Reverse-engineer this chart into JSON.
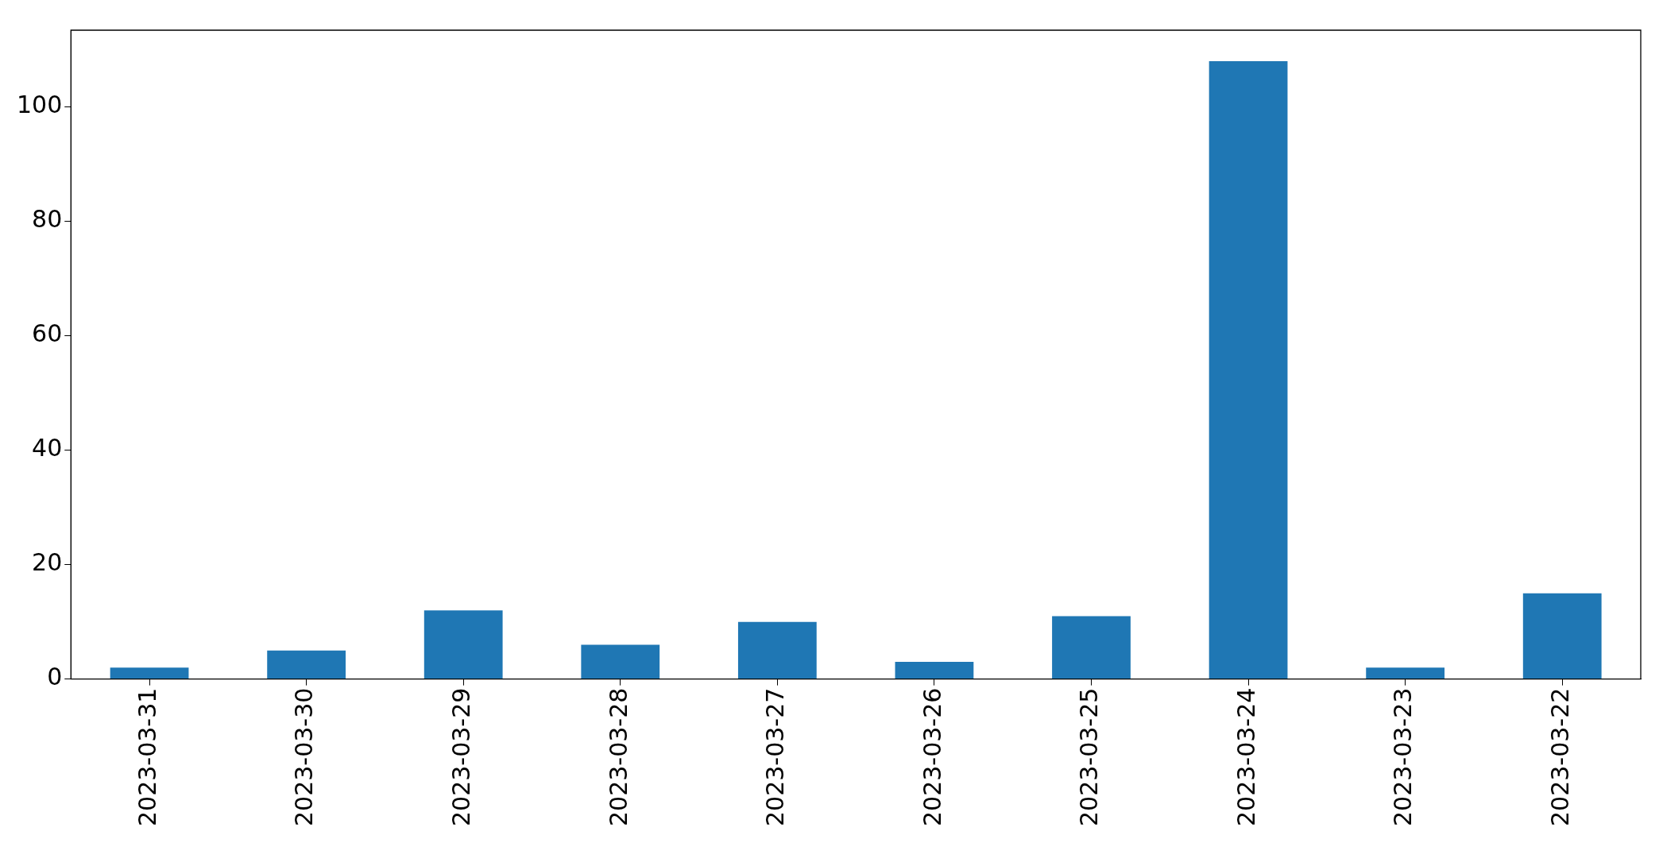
{
  "chart_data": {
    "type": "bar",
    "categories": [
      "2023-03-31",
      "2023-03-30",
      "2023-03-29",
      "2023-03-28",
      "2023-03-27",
      "2023-03-26",
      "2023-03-25",
      "2023-03-24",
      "2023-03-23",
      "2023-03-22"
    ],
    "values": [
      2,
      5,
      12,
      6,
      10,
      3,
      11,
      108,
      2,
      15
    ],
    "color": "#1f77b4",
    "ylim": [
      0,
      113.4
    ],
    "yticks": [
      0,
      20,
      40,
      60,
      80,
      100
    ],
    "grid": false,
    "legend": false
  }
}
